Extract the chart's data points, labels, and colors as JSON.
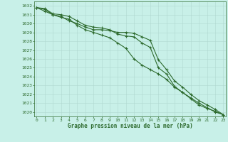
{
  "x": [
    0,
    1,
    2,
    3,
    4,
    5,
    6,
    7,
    8,
    9,
    10,
    11,
    12,
    13,
    14,
    15,
    16,
    17,
    18,
    19,
    20,
    21,
    22,
    23
  ],
  "line1": [
    1031.8,
    1031.6,
    1031.0,
    1030.8,
    1030.3,
    1030.0,
    1029.6,
    1029.3,
    1029.3,
    1029.2,
    1029.0,
    1029.0,
    1028.9,
    1028.5,
    1028.1,
    1025.9,
    1024.8,
    1023.5,
    1022.8,
    1022.0,
    1021.3,
    1020.8,
    1020.3,
    1019.7
  ],
  "line2": [
    1031.8,
    1031.4,
    1031.0,
    1030.7,
    1030.5,
    1029.8,
    1029.3,
    1029.0,
    1028.7,
    1028.4,
    1027.8,
    1027.2,
    1026.0,
    1025.3,
    1024.8,
    1024.3,
    1023.7,
    1022.8,
    1022.2,
    1021.6,
    1021.0,
    1020.5,
    1020.0,
    1019.7
  ],
  "line3": [
    1031.8,
    1031.7,
    1031.1,
    1031.0,
    1030.8,
    1030.3,
    1029.8,
    1029.6,
    1029.5,
    1029.3,
    1028.8,
    1028.6,
    1028.5,
    1027.8,
    1027.3,
    1025.0,
    1024.3,
    1022.9,
    1022.2,
    1021.5,
    1020.8,
    1020.4,
    1020.1,
    1019.7
  ],
  "ylim_min": 1019.5,
  "ylim_max": 1032.5,
  "yticks": [
    1020,
    1021,
    1022,
    1023,
    1024,
    1025,
    1026,
    1027,
    1028,
    1029,
    1030,
    1031,
    1032
  ],
  "xlabel": "Graphe pression niveau de la mer (hPa)",
  "line_color": "#2d6a2d",
  "bg_color": "#c8f0e8",
  "grid_color": "#b0d8d0",
  "marker": "+"
}
